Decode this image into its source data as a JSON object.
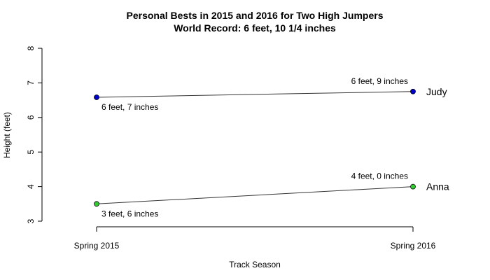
{
  "chart_data": {
    "type": "line",
    "title": "Personal Bests in 2015 and 2016 for Two High Jumpers",
    "subtitle": "World Record: 6 feet, 10 1/4 inches",
    "xlabel": "Track Season",
    "ylabel": "Height (feet)",
    "categories": [
      "Spring 2015",
      "Spring 2016"
    ],
    "ylim": [
      3,
      8
    ],
    "yticks": [
      3,
      4,
      5,
      6,
      7,
      8
    ],
    "ytick_labels": [
      "3",
      "4",
      "5",
      "6",
      "7",
      "8"
    ],
    "grid": false,
    "series": [
      {
        "name": "Judy",
        "values": [
          6.5833,
          6.75
        ],
        "point_labels": [
          "6 feet, 7 inches",
          "6 feet, 9 inches"
        ],
        "color": "#0000cc"
      },
      {
        "name": "Anna",
        "values": [
          3.5,
          4.0
        ],
        "point_labels": [
          "3 feet, 6 inches",
          "4 feet, 0 inches"
        ],
        "color": "#33cc33"
      }
    ]
  }
}
